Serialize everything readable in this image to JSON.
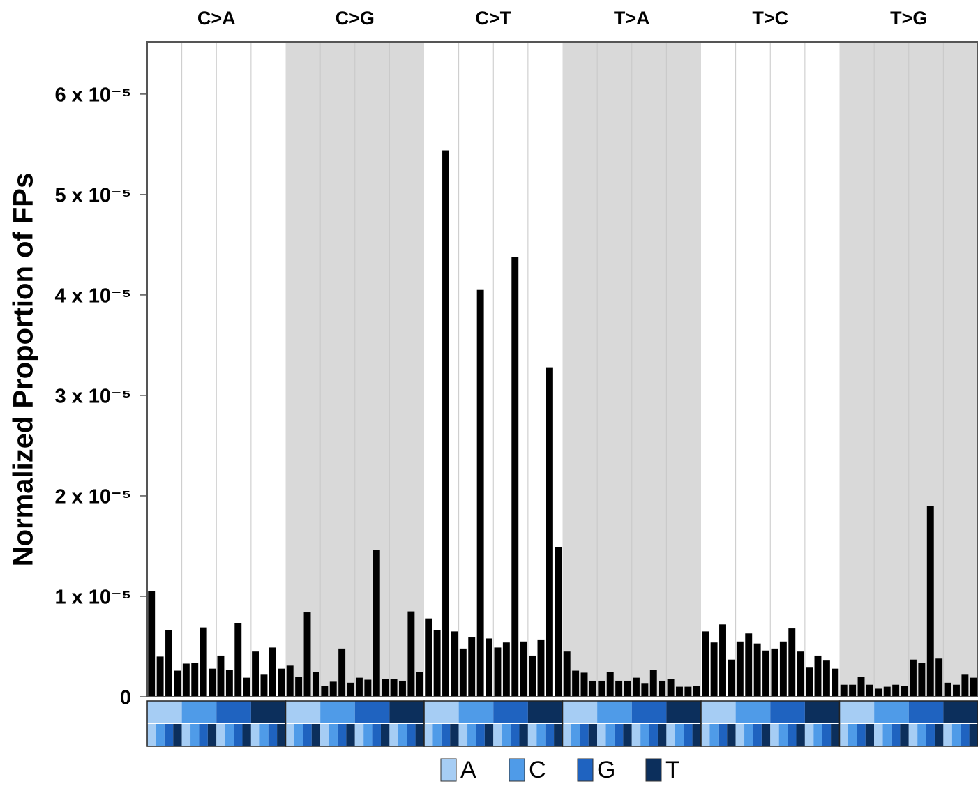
{
  "chart_data": {
    "type": "bar",
    "y_label": "Normalized Proportion of FPs",
    "color": "#000000",
    "ylim": [
      0,
      6.52e-05
    ],
    "yticks": [
      0,
      {
        "value": 1e-05,
        "label": "1 x 10⁻⁵"
      },
      {
        "value": 2e-05,
        "label": "2 x 10⁻⁵"
      },
      {
        "value": 3e-05,
        "label": "3 x 10⁻⁵"
      },
      {
        "value": 4e-05,
        "label": "4 x 10⁻⁵"
      },
      {
        "value": 5e-05,
        "label": "5 x 10⁻⁵"
      },
      {
        "value": 6e-05,
        "label": "6 x 10⁻⁵"
      }
    ],
    "panel_shade": "#d9d9d9",
    "panels": [
      {
        "name": "C>A",
        "shaded": false,
        "values": [
          1.05e-05,
          4e-06,
          6.6e-06,
          2.6e-06,
          3.3e-06,
          3.4e-06,
          6.9e-06,
          2.8e-06,
          4.1e-06,
          2.7e-06,
          7.3e-06,
          1.9e-06,
          4.5e-06,
          2.2e-06,
          4.9e-06,
          2.8e-06
        ]
      },
      {
        "name": "C>G",
        "shaded": true,
        "values": [
          3.1e-06,
          2e-06,
          8.4e-06,
          2.5e-06,
          1.1e-06,
          1.5e-06,
          4.8e-06,
          1.4e-06,
          1.9e-06,
          1.7e-06,
          1.46e-05,
          1.8e-06,
          1.8e-06,
          1.6e-06,
          8.5e-06,
          2.5e-06
        ]
      },
      {
        "name": "C>T",
        "shaded": false,
        "values": [
          7.8e-06,
          6.6e-06,
          5.44e-05,
          6.5e-06,
          4.8e-06,
          5.9e-06,
          4.05e-05,
          5.8e-06,
          4.9e-06,
          5.4e-06,
          4.38e-05,
          5.5e-06,
          4.1e-06,
          5.7e-06,
          3.28e-05,
          1.49e-05
        ]
      },
      {
        "name": "T>A",
        "shaded": true,
        "values": [
          4.5e-06,
          2.6e-06,
          2.4e-06,
          1.6e-06,
          1.6e-06,
          2.5e-06,
          1.6e-06,
          1.6e-06,
          1.9e-06,
          1.3e-06,
          2.7e-06,
          1.6e-06,
          1.8e-06,
          1e-06,
          1e-06,
          1.1e-06
        ]
      },
      {
        "name": "T>C",
        "shaded": false,
        "values": [
          6.5e-06,
          5.4e-06,
          7.2e-06,
          3.7e-06,
          5.5e-06,
          6.3e-06,
          5.3e-06,
          4.6e-06,
          4.8e-06,
          5.5e-06,
          6.8e-06,
          4.5e-06,
          2.9e-06,
          4.1e-06,
          3.6e-06,
          2.8e-06
        ]
      },
      {
        "name": "T>G",
        "shaded": true,
        "values": [
          1.2e-06,
          1.2e-06,
          2e-06,
          1.2e-06,
          8e-07,
          1e-06,
          1.2e-06,
          1.1e-06,
          3.7e-06,
          3.4e-06,
          1.9e-05,
          3.8e-06,
          1.4e-06,
          1.2e-06,
          2.2e-06,
          1.9e-06
        ]
      }
    ],
    "bases": [
      {
        "name": "A",
        "color": "#a6cdf4"
      },
      {
        "name": "C",
        "color": "#4f9be8"
      },
      {
        "name": "G",
        "color": "#1f63c0"
      },
      {
        "name": "T",
        "color": "#0c2f5c"
      }
    ]
  }
}
